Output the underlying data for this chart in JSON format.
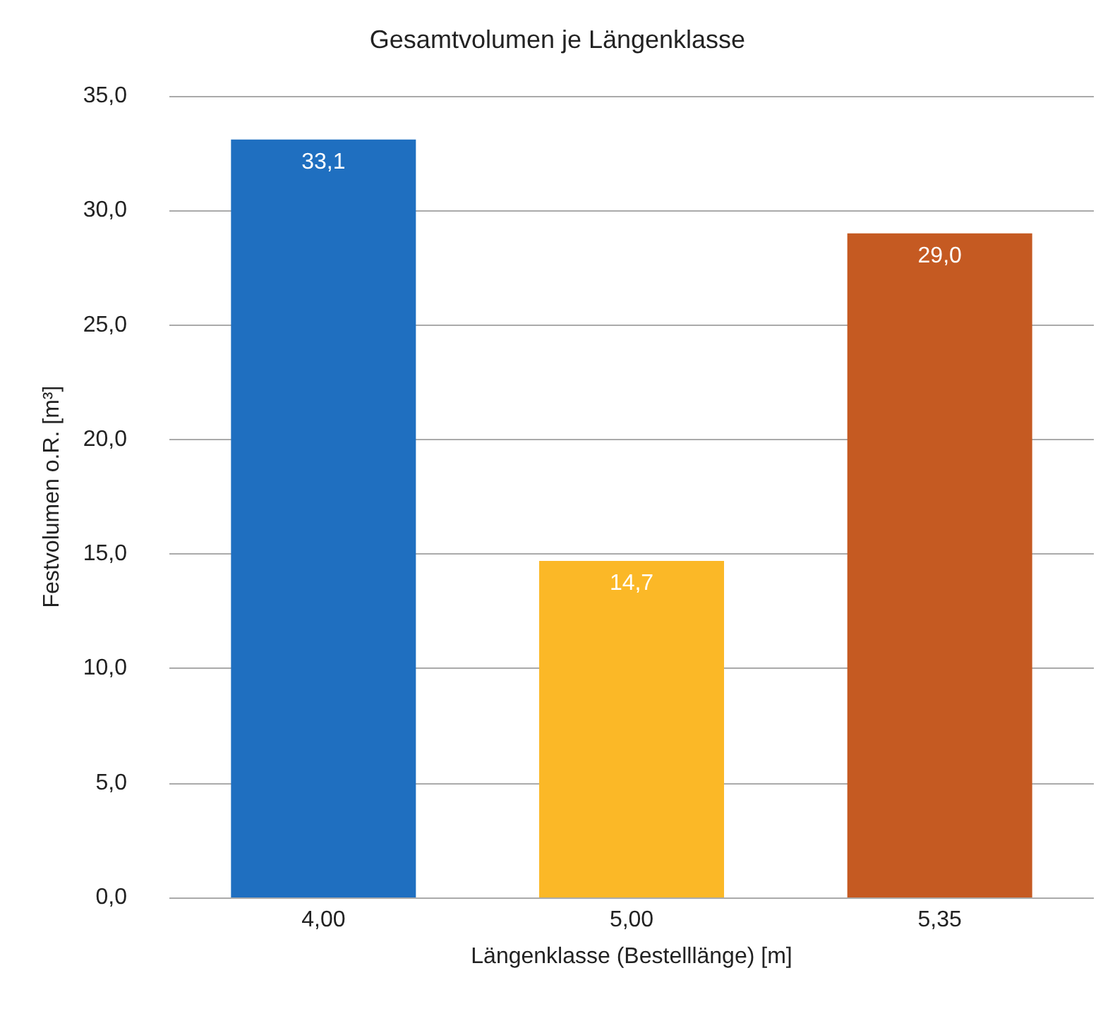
{
  "chart_data": {
    "type": "bar",
    "title": "Gesamtvolumen je Längenklasse",
    "xlabel": "Längenklasse (Bestelllänge) [m]",
    "ylabel": "Festvolumen o.R. [m³]",
    "categories": [
      "4,00",
      "5,00",
      "5,35"
    ],
    "values": [
      33.1,
      14.7,
      29.0
    ],
    "colors": [
      "#1f6fc0",
      "#fbb827",
      "#c55a22"
    ],
    "value_labels": [
      "33,1",
      "14,7",
      "29,0"
    ],
    "ylim": [
      0,
      35
    ],
    "yticks": [
      {
        "value": 0,
        "label": "0,0"
      },
      {
        "value": 5,
        "label": "5,0"
      },
      {
        "value": 10,
        "label": "10,0"
      },
      {
        "value": 15,
        "label": "15,0"
      },
      {
        "value": 20,
        "label": "20,0"
      },
      {
        "value": 25,
        "label": "25,0"
      },
      {
        "value": 30,
        "label": "30,0"
      },
      {
        "value": 35,
        "label": "35,0"
      }
    ],
    "grid": "y"
  }
}
